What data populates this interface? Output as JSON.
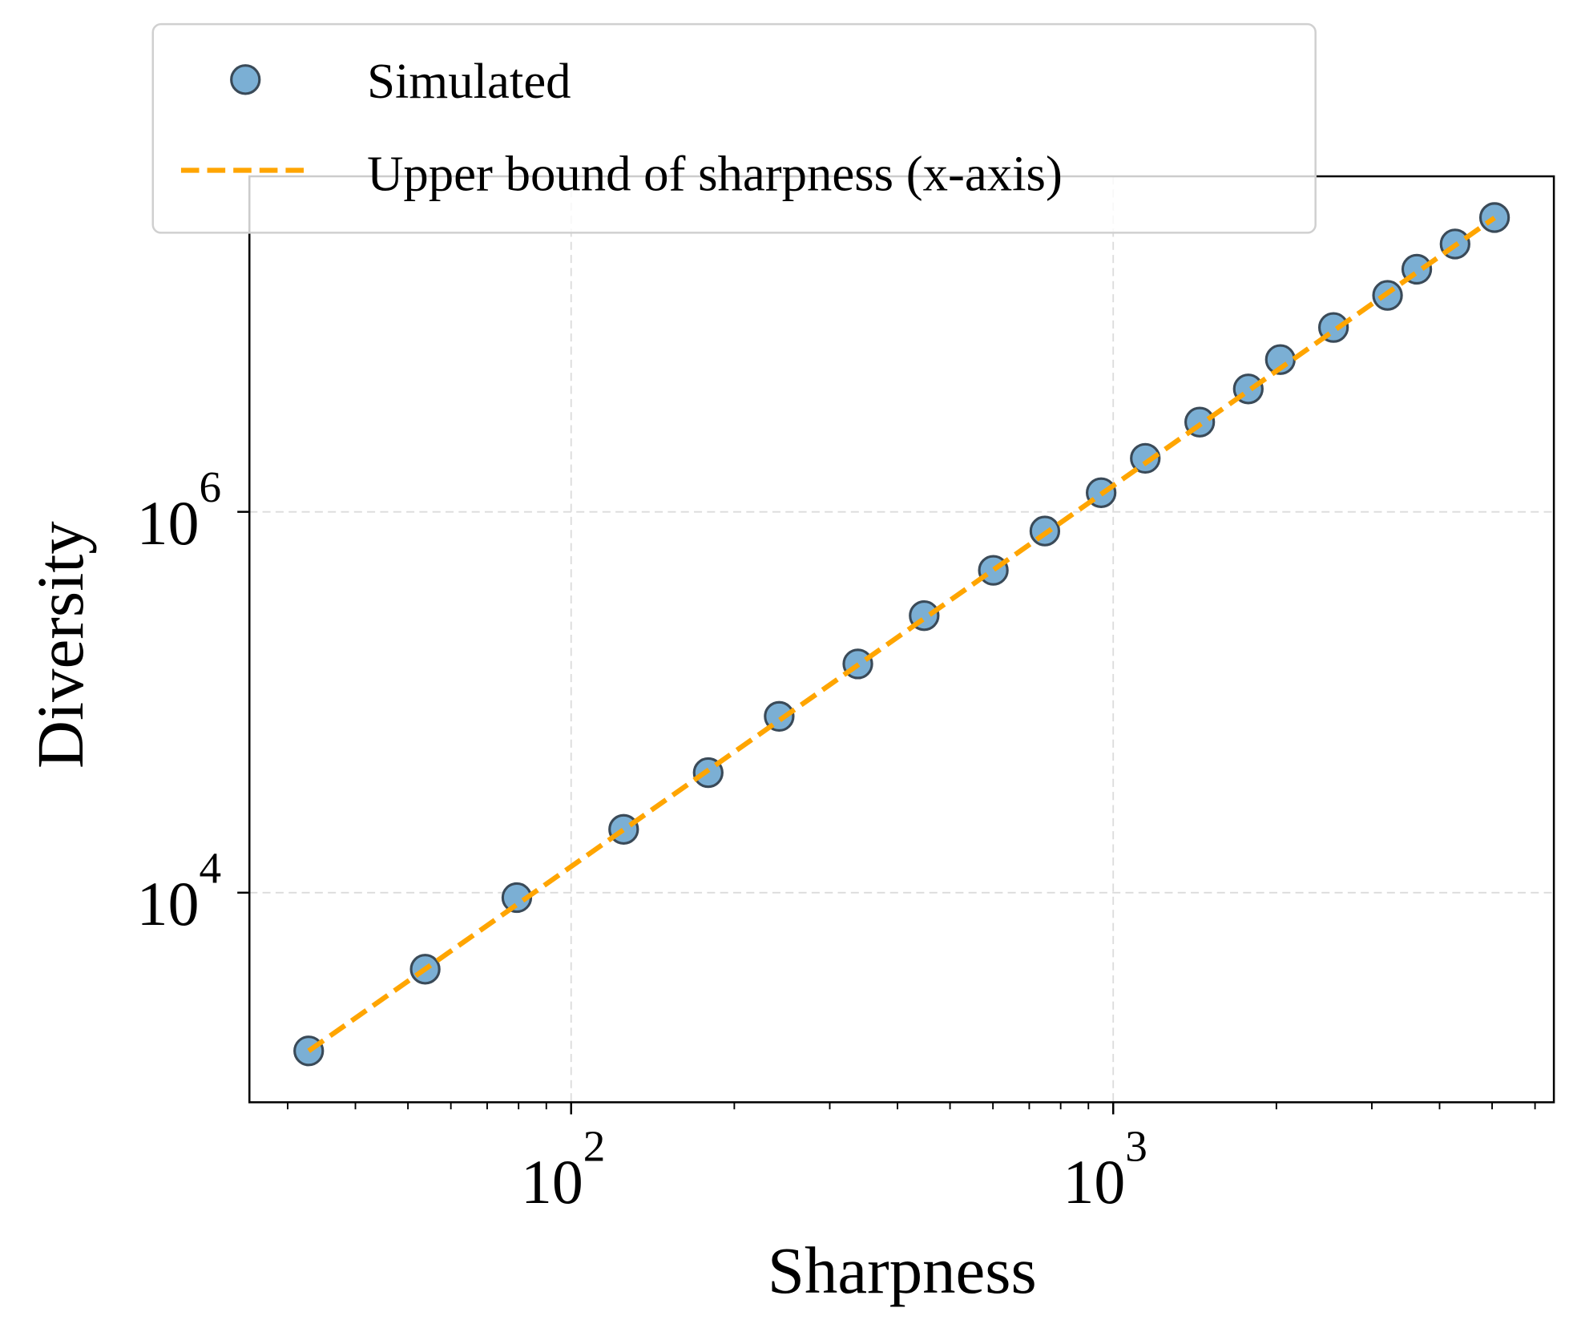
{
  "chart_data": {
    "type": "scatter",
    "title": "",
    "xlabel": "Sharpness",
    "ylabel": "Diversity",
    "xscale": "log",
    "yscale": "log",
    "xlim": [
      25.5,
      6500
    ],
    "ylim": [
      793,
      57800000
    ],
    "grid": true,
    "x_ticks": [
      {
        "value": 100,
        "base": "10",
        "exp": "2"
      },
      {
        "value": 1000,
        "base": "10",
        "exp": "3"
      }
    ],
    "y_ticks": [
      {
        "value": 10000,
        "base": "10",
        "exp": "4"
      },
      {
        "value": 1000000,
        "base": "10",
        "exp": "6"
      }
    ],
    "legend_position": "top-left",
    "series": [
      {
        "name": "Simulated",
        "kind": "scatter",
        "color": "#7bafd4",
        "edge_color": "#3a4a58",
        "x": [
          32.8,
          53.8,
          79.4,
          125,
          179,
          242,
          338,
          448,
          601,
          748,
          950,
          1146,
          1444,
          1775,
          2034,
          2549,
          3207,
          3631,
          4272,
          5052
        ],
        "y": [
          1476,
          3963,
          9420,
          21500,
          42700,
          84300,
          159000,
          285000,
          493000,
          793000,
          1260000,
          1910000,
          2960000,
          4420000,
          6300000,
          9290000,
          13700000,
          18800000,
          25500000,
          35100000
        ]
      },
      {
        "name": "Upper bound of sharpness (x-axis)",
        "kind": "line",
        "style": "dashed",
        "color": "#ffa500",
        "x": [
          32.8,
          5052
        ],
        "y": [
          1476,
          35000000
        ]
      }
    ]
  }
}
